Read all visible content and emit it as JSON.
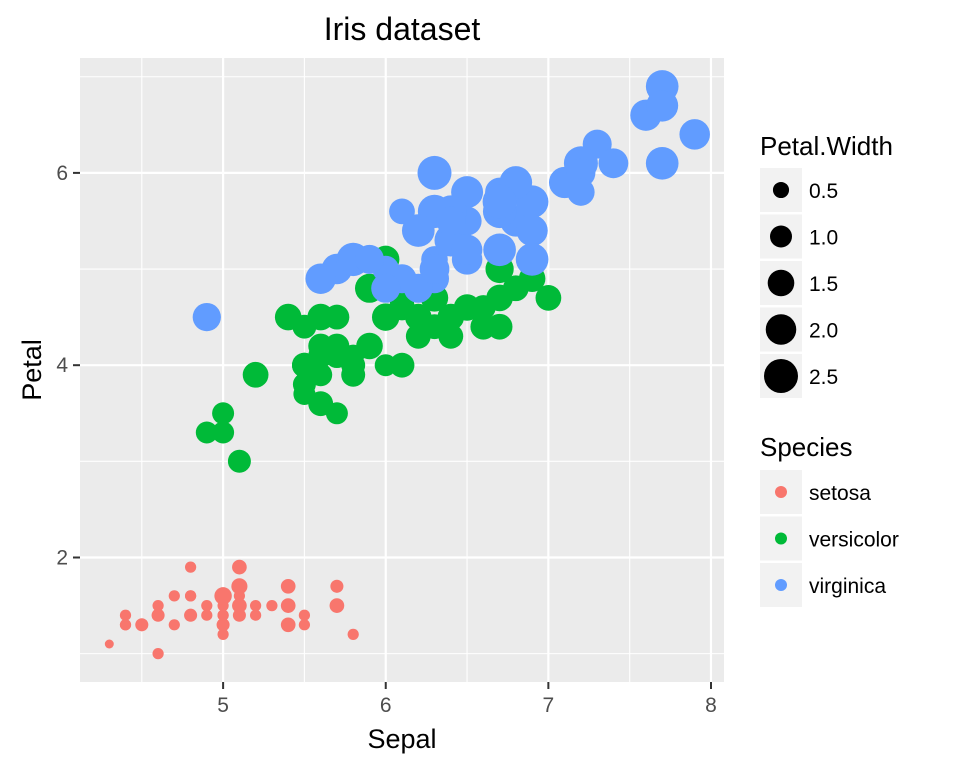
{
  "chart_data": {
    "type": "scatter",
    "title": "Iris dataset",
    "xlabel": "Sepal",
    "ylabel": "Petal",
    "xlim": [
      4.12,
      8.08
    ],
    "ylim": [
      0.705,
      7.195
    ],
    "x_ticks": [
      5,
      6,
      7,
      8
    ],
    "y_ticks": [
      2,
      4,
      6
    ],
    "grid": true,
    "legend_position": "right",
    "size_legend": {
      "title": "Petal.Width",
      "values": [
        0.5,
        1.0,
        1.5,
        2.0,
        2.5
      ],
      "labels": [
        "0.5",
        "1.0",
        "1.5",
        "2.0",
        "2.5"
      ]
    },
    "color_legend": {
      "title": "Species",
      "labels": [
        "setosa",
        "versicolor",
        "virginica"
      ]
    },
    "series": [
      {
        "name": "setosa",
        "color": "#F8766D",
        "points": [
          [
            5.1,
            1.4,
            0.2
          ],
          [
            4.9,
            1.4,
            0.2
          ],
          [
            4.7,
            1.3,
            0.2
          ],
          [
            4.6,
            1.5,
            0.2
          ],
          [
            5.0,
            1.4,
            0.2
          ],
          [
            5.4,
            1.7,
            0.4
          ],
          [
            4.6,
            1.4,
            0.3
          ],
          [
            5.0,
            1.5,
            0.2
          ],
          [
            4.4,
            1.4,
            0.2
          ],
          [
            4.9,
            1.5,
            0.1
          ],
          [
            5.4,
            1.5,
            0.2
          ],
          [
            4.8,
            1.6,
            0.2
          ],
          [
            4.8,
            1.4,
            0.1
          ],
          [
            4.3,
            1.1,
            0.1
          ],
          [
            5.8,
            1.2,
            0.2
          ],
          [
            5.7,
            1.5,
            0.4
          ],
          [
            5.4,
            1.3,
            0.4
          ],
          [
            5.1,
            1.4,
            0.3
          ],
          [
            5.7,
            1.7,
            0.3
          ],
          [
            5.1,
            1.5,
            0.3
          ],
          [
            5.4,
            1.7,
            0.2
          ],
          [
            5.1,
            1.5,
            0.4
          ],
          [
            4.6,
            1.0,
            0.2
          ],
          [
            5.1,
            1.7,
            0.5
          ],
          [
            4.8,
            1.9,
            0.2
          ],
          [
            5.0,
            1.6,
            0.2
          ],
          [
            5.0,
            1.6,
            0.4
          ],
          [
            5.2,
            1.5,
            0.2
          ],
          [
            5.2,
            1.4,
            0.2
          ],
          [
            4.7,
            1.6,
            0.2
          ],
          [
            4.8,
            1.6,
            0.2
          ],
          [
            5.4,
            1.5,
            0.4
          ],
          [
            5.2,
            1.5,
            0.1
          ],
          [
            5.5,
            1.4,
            0.2
          ],
          [
            4.9,
            1.5,
            0.2
          ],
          [
            5.0,
            1.2,
            0.2
          ],
          [
            5.5,
            1.3,
            0.2
          ],
          [
            4.9,
            1.4,
            0.1
          ],
          [
            4.4,
            1.3,
            0.2
          ],
          [
            5.1,
            1.5,
            0.2
          ],
          [
            5.0,
            1.3,
            0.3
          ],
          [
            4.5,
            1.3,
            0.3
          ],
          [
            4.4,
            1.3,
            0.2
          ],
          [
            5.0,
            1.6,
            0.6
          ],
          [
            5.1,
            1.9,
            0.4
          ],
          [
            4.8,
            1.4,
            0.3
          ],
          [
            5.1,
            1.6,
            0.2
          ],
          [
            4.6,
            1.4,
            0.2
          ],
          [
            5.3,
            1.5,
            0.2
          ],
          [
            5.0,
            1.4,
            0.2
          ]
        ]
      },
      {
        "name": "versicolor",
        "color": "#00BA38",
        "points": [
          [
            7.0,
            4.7,
            1.4
          ],
          [
            6.4,
            4.5,
            1.5
          ],
          [
            6.9,
            4.9,
            1.5
          ],
          [
            5.5,
            4.0,
            1.3
          ],
          [
            6.5,
            4.6,
            1.5
          ],
          [
            5.7,
            4.5,
            1.3
          ],
          [
            6.3,
            4.7,
            1.6
          ],
          [
            4.9,
            3.3,
            1.0
          ],
          [
            6.6,
            4.6,
            1.3
          ],
          [
            5.2,
            3.9,
            1.4
          ],
          [
            5.0,
            3.5,
            1.0
          ],
          [
            5.9,
            4.2,
            1.5
          ],
          [
            6.0,
            4.0,
            1.0
          ],
          [
            6.1,
            4.7,
            1.4
          ],
          [
            5.6,
            3.6,
            1.3
          ],
          [
            6.7,
            4.4,
            1.4
          ],
          [
            5.6,
            4.5,
            1.5
          ],
          [
            5.8,
            4.1,
            1.0
          ],
          [
            6.2,
            4.5,
            1.5
          ],
          [
            5.6,
            3.9,
            1.1
          ],
          [
            5.9,
            4.8,
            1.8
          ],
          [
            6.1,
            4.0,
            1.3
          ],
          [
            6.3,
            4.9,
            1.5
          ],
          [
            6.1,
            4.7,
            1.2
          ],
          [
            6.4,
            4.3,
            1.3
          ],
          [
            6.6,
            4.4,
            1.4
          ],
          [
            6.8,
            4.8,
            1.4
          ],
          [
            6.7,
            5.0,
            1.7
          ],
          [
            6.0,
            4.5,
            1.5
          ],
          [
            5.7,
            3.5,
            1.0
          ],
          [
            5.5,
            3.8,
            1.1
          ],
          [
            5.5,
            3.7,
            1.0
          ],
          [
            5.8,
            3.9,
            1.2
          ],
          [
            6.0,
            5.1,
            1.6
          ],
          [
            5.4,
            4.5,
            1.5
          ],
          [
            6.0,
            4.5,
            1.6
          ],
          [
            6.7,
            4.7,
            1.5
          ],
          [
            6.3,
            4.4,
            1.3
          ],
          [
            5.6,
            4.1,
            1.3
          ],
          [
            5.5,
            4.0,
            1.3
          ],
          [
            5.5,
            4.4,
            1.2
          ],
          [
            6.1,
            4.6,
            1.4
          ],
          [
            5.8,
            4.0,
            1.2
          ],
          [
            5.0,
            3.3,
            1.0
          ],
          [
            5.6,
            4.2,
            1.3
          ],
          [
            5.7,
            4.2,
            1.2
          ],
          [
            5.7,
            4.2,
            1.3
          ],
          [
            6.2,
            4.3,
            1.3
          ],
          [
            5.1,
            3.0,
            1.1
          ],
          [
            5.7,
            4.1,
            1.3
          ]
        ]
      },
      {
        "name": "virginica",
        "color": "#619CFF",
        "points": [
          [
            6.3,
            6.0,
            2.5
          ],
          [
            5.8,
            5.1,
            1.9
          ],
          [
            7.1,
            5.9,
            2.1
          ],
          [
            6.3,
            5.6,
            1.8
          ],
          [
            6.5,
            5.8,
            2.2
          ],
          [
            7.6,
            6.6,
            2.1
          ],
          [
            4.9,
            4.5,
            1.7
          ],
          [
            7.3,
            6.3,
            1.8
          ],
          [
            6.7,
            5.8,
            1.8
          ],
          [
            7.2,
            6.1,
            2.5
          ],
          [
            6.5,
            5.1,
            2.0
          ],
          [
            6.4,
            5.3,
            1.9
          ],
          [
            6.8,
            5.5,
            2.1
          ],
          [
            5.7,
            5.0,
            2.0
          ],
          [
            5.8,
            5.1,
            2.4
          ],
          [
            6.4,
            5.3,
            2.3
          ],
          [
            6.5,
            5.5,
            1.8
          ],
          [
            7.7,
            6.7,
            2.2
          ],
          [
            7.7,
            6.9,
            2.3
          ],
          [
            6.0,
            5.0,
            1.5
          ],
          [
            6.9,
            5.7,
            2.3
          ],
          [
            5.6,
            4.9,
            2.0
          ],
          [
            7.7,
            6.7,
            2.0
          ],
          [
            6.3,
            4.9,
            1.8
          ],
          [
            6.7,
            5.7,
            2.1
          ],
          [
            7.2,
            6.0,
            1.8
          ],
          [
            6.2,
            4.8,
            1.8
          ],
          [
            6.1,
            4.9,
            1.8
          ],
          [
            6.4,
            5.6,
            2.1
          ],
          [
            7.2,
            5.8,
            1.6
          ],
          [
            7.4,
            6.1,
            1.9
          ],
          [
            7.9,
            6.4,
            2.0
          ],
          [
            6.4,
            5.6,
            2.2
          ],
          [
            6.3,
            5.1,
            1.5
          ],
          [
            6.1,
            5.6,
            1.4
          ],
          [
            7.7,
            6.1,
            2.3
          ],
          [
            6.3,
            5.6,
            2.4
          ],
          [
            6.4,
            5.5,
            1.8
          ],
          [
            6.0,
            4.8,
            1.8
          ],
          [
            6.9,
            5.4,
            2.1
          ],
          [
            6.7,
            5.6,
            2.4
          ],
          [
            6.9,
            5.1,
            2.3
          ],
          [
            5.8,
            5.1,
            1.9
          ],
          [
            6.8,
            5.9,
            2.3
          ],
          [
            6.7,
            5.7,
            2.5
          ],
          [
            6.7,
            5.2,
            2.3
          ],
          [
            6.3,
            5.0,
            1.9
          ],
          [
            6.5,
            5.2,
            2.0
          ],
          [
            6.2,
            5.4,
            2.3
          ],
          [
            5.9,
            5.1,
            1.8
          ]
        ]
      }
    ]
  }
}
